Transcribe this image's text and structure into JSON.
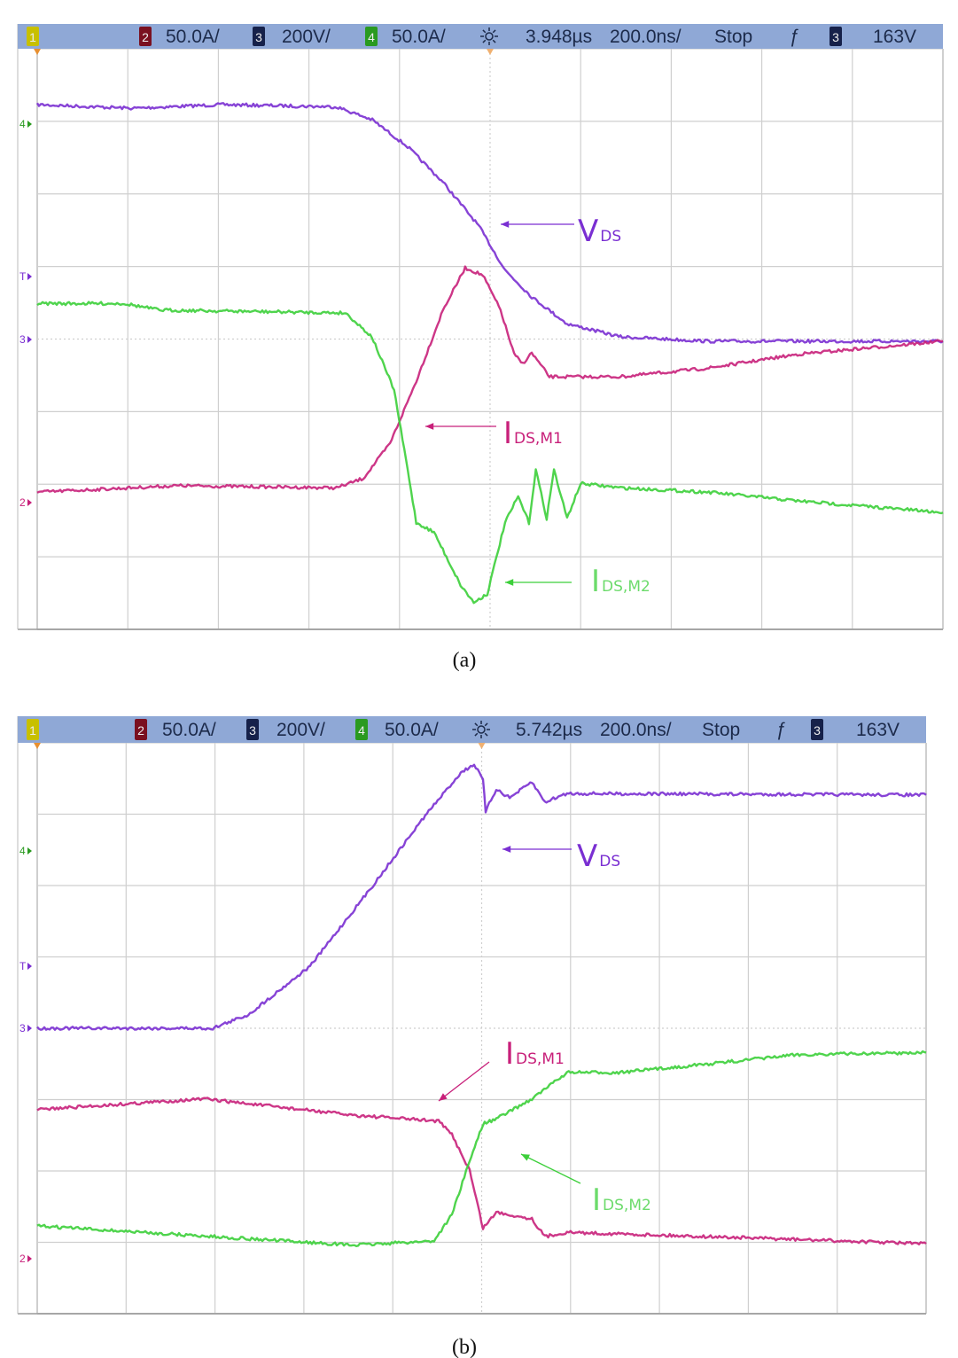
{
  "colors": {
    "header_bg": "#8fa8d6",
    "grid": "#cfcfcf",
    "vds": "#7a2fd2",
    "ids_m1": "#c8207a",
    "ids_m2": "#3ccf3a",
    "ch1_badge": "#c8c000",
    "ch2_badge": "#7a1020",
    "ch3_badge": "#16214a",
    "ch4_badge": "#2a9a20"
  },
  "chart_data": [
    {
      "type": "line",
      "panel_caption": "(a)",
      "header": {
        "ch1": "1",
        "ch2": "2",
        "ch2_scale": "50.0A/",
        "ch3": "3",
        "ch3_scale": "200V/",
        "ch4": "4",
        "ch4_scale": "50.0A/",
        "trigger_icon": "sun-icon",
        "delay": "3.948µs",
        "timebase": "200.0ns/",
        "run_state": "Stop",
        "trigger_edge": "falling-edge-icon",
        "trig_ch": "3",
        "trig_level": "163V"
      },
      "markers": {
        "ch4": "4",
        "trig": "T",
        "ch3": "3",
        "ch2": "2"
      },
      "grid": true,
      "x_unit": "ns",
      "y_unit": "div",
      "xlim": [
        0,
        2000
      ],
      "ylim": [
        0,
        8
      ],
      "series": [
        {
          "name_main": "V",
          "name_sub": "DS",
          "color_key": "vds",
          "x": [
            0,
            211,
            407,
            661,
            740,
            818,
            896,
            975,
            1033,
            1092,
            1170,
            1288,
            1483,
            2000
          ],
          "y": [
            7.23,
            7.18,
            7.23,
            7.2,
            7.02,
            6.65,
            6.16,
            5.56,
            4.95,
            4.58,
            4.21,
            4.03,
            3.97,
            3.97
          ]
        },
        {
          "name_main": "I",
          "name_sub": "DS,M1",
          "color_key": "ids_m1",
          "x": [
            0,
            309,
            661,
            720,
            779,
            837,
            896,
            945,
            984,
            1023,
            1053,
            1072,
            1092,
            1131,
            1288,
            1483,
            1679,
            2000
          ],
          "y": [
            1.89,
            1.98,
            1.95,
            2.08,
            2.56,
            3.42,
            4.4,
            4.98,
            4.88,
            4.4,
            3.79,
            3.66,
            3.81,
            3.48,
            3.48,
            3.6,
            3.79,
            3.97
          ]
        },
        {
          "name_main": "I",
          "name_sub": "DS,M2",
          "color_key": "ids_m2",
          "x": [
            0,
            192,
            270,
            681,
            739,
            788,
            818,
            837,
            876,
            935,
            964,
            994,
            1033,
            1062,
            1086,
            1101,
            1125,
            1141,
            1170,
            1200,
            1288,
            1483,
            1679,
            2000
          ],
          "y": [
            4.49,
            4.49,
            4.4,
            4.36,
            4.03,
            3.3,
            2.2,
            1.47,
            1.34,
            0.61,
            0.37,
            0.49,
            1.47,
            1.83,
            1.47,
            2.2,
            1.53,
            2.2,
            1.53,
            2.01,
            1.95,
            1.89,
            1.77,
            1.61
          ]
        }
      ]
    },
    {
      "type": "line",
      "panel_caption": "(b)",
      "header": {
        "ch1": "1",
        "ch2": "2",
        "ch2_scale": "50.0A/",
        "ch3": "3",
        "ch3_scale": "200V/",
        "ch4": "4",
        "ch4_scale": "50.0A/",
        "trigger_icon": "sun-icon",
        "delay": "5.742µs",
        "timebase": "200.0ns/",
        "run_state": "Stop",
        "trigger_edge": "falling-edge-icon",
        "trig_ch": "3",
        "trig_level": "163V"
      },
      "markers": {
        "ch4": "4",
        "trig": "T",
        "ch3": "3",
        "ch2": "2"
      },
      "grid": true,
      "x_unit": "ns",
      "y_unit": "div",
      "xlim": [
        0,
        2000
      ],
      "ylim": [
        0,
        8
      ],
      "series": [
        {
          "name_main": "V",
          "name_sub": "DS",
          "color_key": "vds",
          "x": [
            0,
            395,
            475,
            614,
            754,
            873,
            953,
            983,
            1003,
            1009,
            1033,
            1063,
            1113,
            1142,
            1192,
            2000
          ],
          "y": [
            4.0,
            4.0,
            4.19,
            4.87,
            5.99,
            6.98,
            7.58,
            7.7,
            7.48,
            7.04,
            7.35,
            7.23,
            7.45,
            7.17,
            7.29,
            7.27
          ]
        },
        {
          "name_main": "I",
          "name_sub": "DS,M1",
          "color_key": "ids_m1",
          "x": [
            0,
            375,
            714,
            903,
            933,
            973,
            1003,
            1033,
            1113,
            1142,
            1192,
            1511,
            2000
          ],
          "y": [
            2.86,
            3.01,
            2.78,
            2.7,
            2.51,
            2.01,
            1.2,
            1.42,
            1.33,
            1.08,
            1.14,
            1.08,
            0.98
          ]
        },
        {
          "name_main": "I",
          "name_sub": "DS,M2",
          "color_key": "ids_m2",
          "x": [
            0,
            315,
            714,
            893,
            933,
            973,
            1003,
            1033,
            1113,
            1192,
            1312,
            1511,
            1711,
            2000
          ],
          "y": [
            1.23,
            1.11,
            0.96,
            1.02,
            1.39,
            2.14,
            2.66,
            2.73,
            3.01,
            3.38,
            3.38,
            3.5,
            3.63,
            3.66
          ]
        }
      ]
    }
  ]
}
